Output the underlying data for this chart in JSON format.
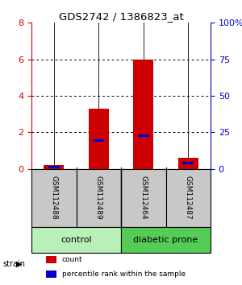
{
  "title": "GDS2742 / 1386823_at",
  "samples": [
    "GSM112488",
    "GSM112489",
    "GSM112464",
    "GSM112487"
  ],
  "counts": [
    0.2,
    3.3,
    6.0,
    0.6
  ],
  "percentiles": [
    0.1,
    1.55,
    1.8,
    0.3
  ],
  "ylim_left": [
    0,
    8
  ],
  "ylim_right": [
    0,
    100
  ],
  "yticks_left": [
    0,
    2,
    4,
    6,
    8
  ],
  "yticks_right": [
    0,
    25,
    50,
    75,
    100
  ],
  "ytick_labels_right": [
    "0",
    "25",
    "50",
    "75",
    "100%"
  ],
  "groups": [
    {
      "label": "control",
      "color": "#b8f0b8"
    },
    {
      "label": "diabetic prone",
      "color": "#55cc55"
    }
  ],
  "bar_color_red": "#cc0000",
  "bar_color_blue": "#0000cc",
  "bar_width": 0.45,
  "blue_bar_width": 0.25,
  "blue_bar_height": 0.15,
  "background_color": "#ffffff",
  "sample_box_color": "#c8c8c8",
  "left_axis_color": "#cc0000",
  "right_axis_color": "#0000cc",
  "grid_dotted_color": "#000000",
  "spine_color": "#000000"
}
